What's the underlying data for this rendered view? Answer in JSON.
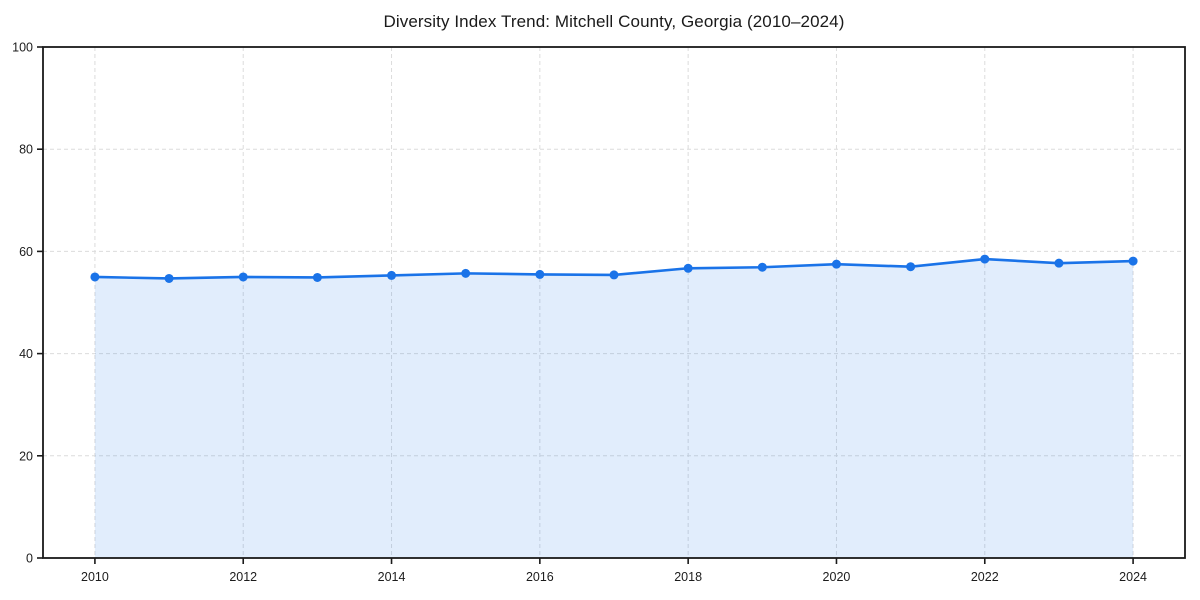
{
  "chart_data": {
    "type": "area",
    "title": "Diversity Index Trend: Mitchell County, Georgia (2010–2024)",
    "x": [
      2010,
      2011,
      2012,
      2013,
      2014,
      2015,
      2016,
      2017,
      2018,
      2019,
      2020,
      2021,
      2022,
      2023,
      2024
    ],
    "values": [
      55.0,
      54.7,
      55.0,
      54.9,
      55.3,
      55.7,
      55.5,
      55.4,
      56.7,
      56.9,
      57.5,
      57.0,
      58.5,
      57.7,
      58.1
    ],
    "xlabel": "",
    "ylabel": "",
    "xlim": [
      2009.3,
      2024.7
    ],
    "ylim": [
      0,
      100
    ],
    "xticks": [
      2010,
      2012,
      2014,
      2016,
      2018,
      2020,
      2022,
      2024
    ],
    "yticks": [
      0,
      20,
      40,
      60,
      80,
      100
    ],
    "grid": true,
    "grid_style": "dashed",
    "legend": false,
    "line_color": "#1a73e8",
    "fill_color": "rgba(26,115,232,0.13)",
    "marker": "circle",
    "grid_color": "#dcdcdc",
    "spine_color": "#1a1a1a"
  }
}
